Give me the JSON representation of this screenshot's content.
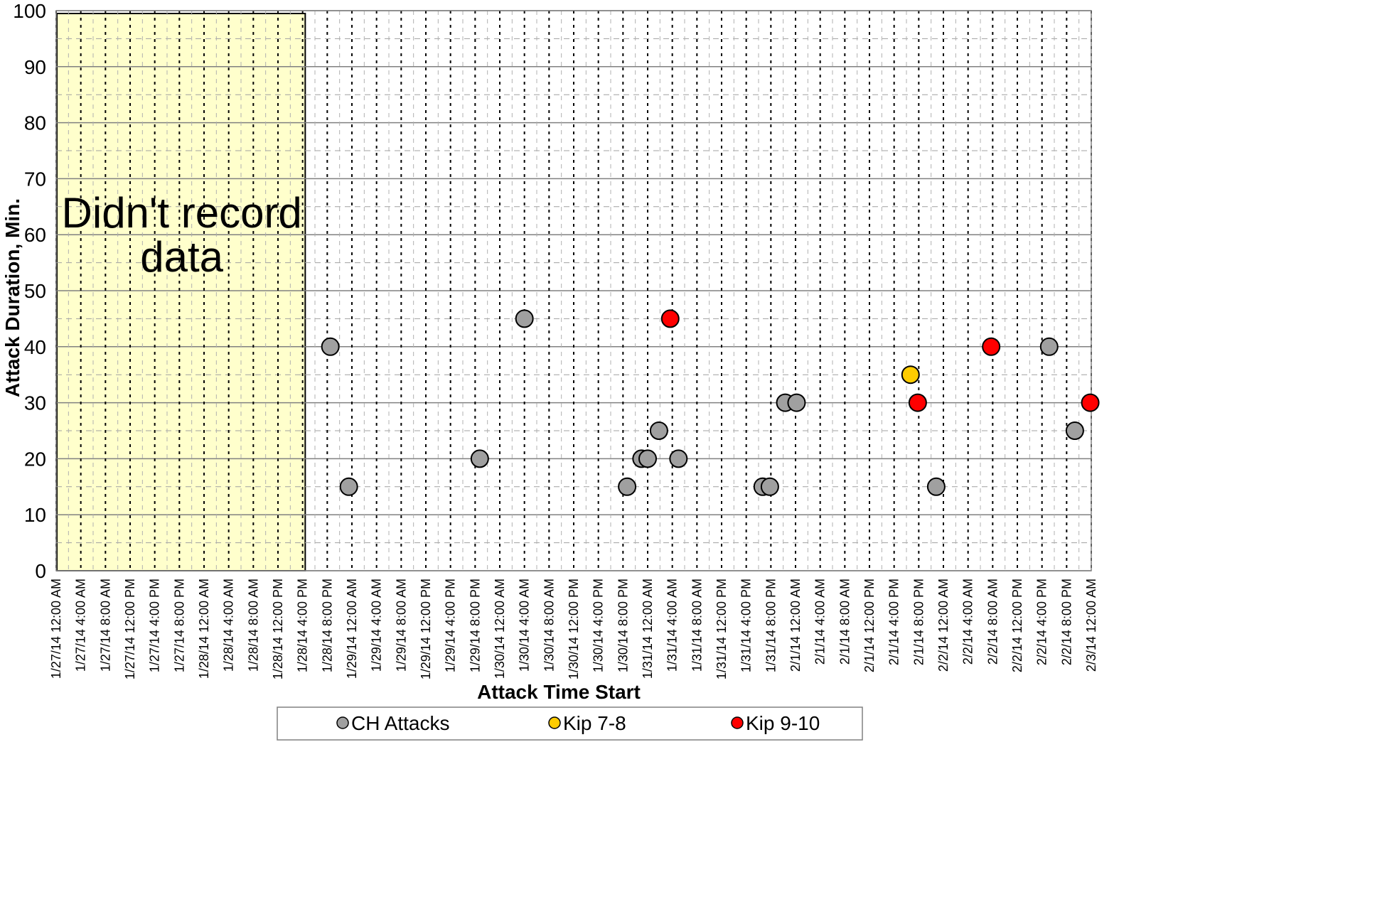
{
  "chart_data": {
    "type": "scatter",
    "xlabel": "Attack Time Start",
    "ylabel": "Attack Duration, Min.",
    "ylim": [
      0,
      100
    ],
    "y_ticks": [
      0,
      10,
      20,
      30,
      40,
      50,
      60,
      70,
      80,
      90,
      100
    ],
    "xlim": [
      "1/27/14 12:00 AM",
      "2/3/14 12:00 AM"
    ],
    "x_tick_interval_hours": 4,
    "grid": true,
    "legend_position": "bottom",
    "annotation": {
      "text": "Didn't record data",
      "x_start": "1/27/14 12:00 AM",
      "x_end": "1/28/14 8:00 PM",
      "y_start": 0,
      "y_end": 100,
      "color": "#FFFFCC"
    },
    "x_tick_labels": [
      "1/27/14 12:00 AM",
      "1/27/14 4:00 AM",
      "1/27/14 8:00 AM",
      "1/27/14 12:00 PM",
      "1/27/14 4:00 PM",
      "1/27/14 8:00 PM",
      "1/28/14 12:00 AM",
      "1/28/14 4:00 AM",
      "1/28/14 8:00 AM",
      "1/28/14 12:00 PM",
      "1/28/14 4:00 PM",
      "1/28/14 8:00 PM",
      "1/29/14 12:00 AM",
      "1/29/14 4:00 AM",
      "1/29/14 8:00 AM",
      "1/29/14 12:00 PM",
      "1/29/14 4:00 PM",
      "1/29/14 8:00 PM",
      "1/30/14 12:00 AM",
      "1/30/14 4:00 AM",
      "1/30/14 8:00 AM",
      "1/30/14 12:00 PM",
      "1/30/14 4:00 PM",
      "1/30/14 8:00 PM",
      "1/31/14 12:00 AM",
      "1/31/14 4:00 AM",
      "1/31/14 8:00 AM",
      "1/31/14 12:00 PM",
      "1/31/14 4:00 PM",
      "1/31/14 8:00 PM",
      "2/1/14 12:00 AM",
      "2/1/14 4:00 AM",
      "2/1/14 8:00 AM",
      "2/1/14 12:00 PM",
      "2/1/14 4:00 PM",
      "2/1/14 8:00 PM",
      "2/2/14 12:00 AM",
      "2/2/14 4:00 AM",
      "2/2/14 8:00 AM",
      "2/2/14 12:00 PM",
      "2/2/14 4:00 PM",
      "2/2/14 8:00 PM",
      "2/3/14 12:00 AM"
    ],
    "series": [
      {
        "name": "CH Attacks",
        "color": "#A0A0A0",
        "points": [
          {
            "x": "1/28/14 8:30 PM",
            "y": 40
          },
          {
            "x": "1/28/14 11:30 PM",
            "y": 15
          },
          {
            "x": "1/29/14 8:45 PM",
            "y": 20
          },
          {
            "x": "1/30/14 4:00 AM",
            "y": 45
          },
          {
            "x": "1/30/14 8:40 PM",
            "y": 15
          },
          {
            "x": "1/30/14 11:00 PM",
            "y": 20
          },
          {
            "x": "1/31/14 12:00 AM",
            "y": 20
          },
          {
            "x": "1/31/14 1:50 AM",
            "y": 25
          },
          {
            "x": "1/31/14 5:00 AM",
            "y": 20
          },
          {
            "x": "1/31/14 6:40 PM",
            "y": 15
          },
          {
            "x": "1/31/14 7:50 PM",
            "y": 15
          },
          {
            "x": "1/31/14 10:20 PM",
            "y": 30
          },
          {
            "x": "2/1/14 12:10 AM",
            "y": 30
          },
          {
            "x": "2/1/14 10:50 PM",
            "y": 15
          },
          {
            "x": "2/2/14 5:10 PM",
            "y": 40
          },
          {
            "x": "2/2/14 9:20 PM",
            "y": 25
          }
        ]
      },
      {
        "name": "Kip 7-8",
        "color": "#FFCC00",
        "points": [
          {
            "x": "2/1/14 6:40 PM",
            "y": 35
          }
        ]
      },
      {
        "name": "Kip 9-10",
        "color": "#FF0000",
        "points": [
          {
            "x": "1/31/14 3:40 AM",
            "y": 45
          },
          {
            "x": "2/1/14 7:50 PM",
            "y": 30
          },
          {
            "x": "2/2/14 7:45 AM",
            "y": 40
          },
          {
            "x": "2/2/14 11:50 PM",
            "y": 30
          }
        ]
      }
    ]
  }
}
